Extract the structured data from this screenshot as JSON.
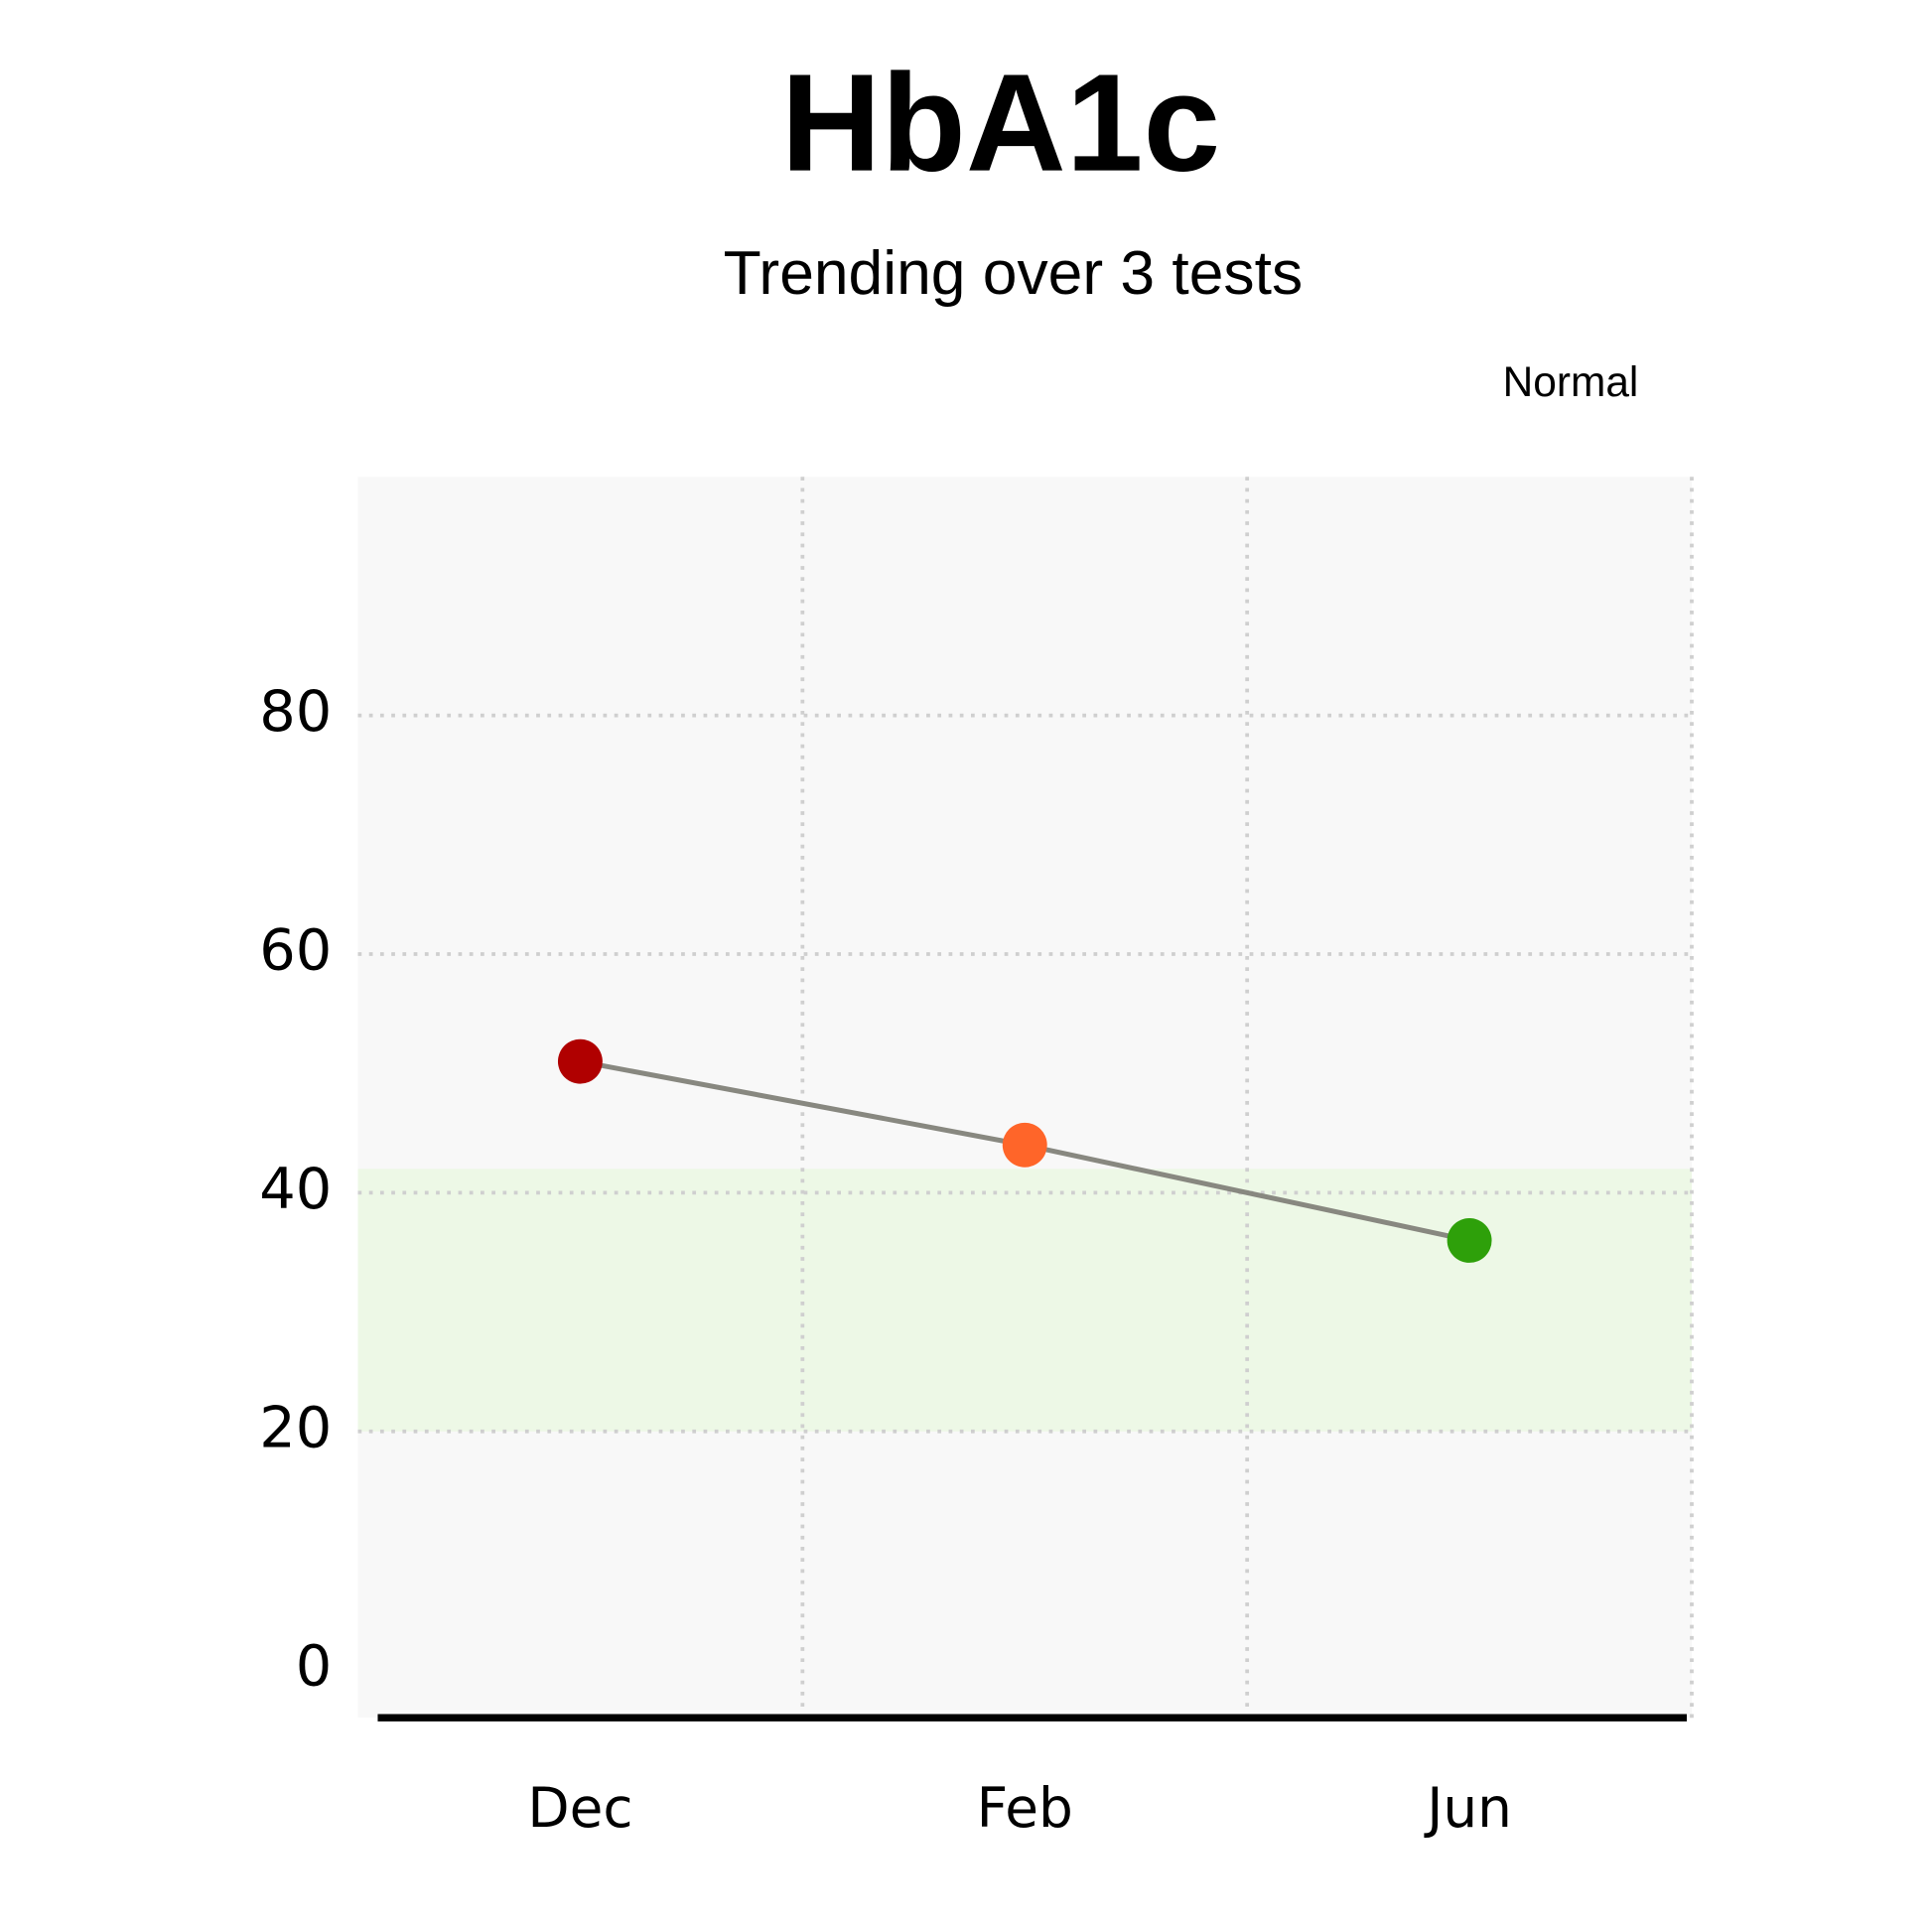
{
  "chart_data": {
    "type": "line",
    "title": "HbA1c",
    "subtitle": "Trending over 3 tests",
    "categories": [
      "Dec",
      "Feb",
      "Jun"
    ],
    "series": [
      {
        "values": [
          51,
          44,
          36
        ],
        "color": "#888880",
        "point_colors": [
          "#b00000",
          "#ff6529",
          "#2ea00a"
        ]
      }
    ],
    "ylim": [
      -4,
      100
    ],
    "yticks": [
      0,
      20,
      40,
      60,
      80
    ],
    "grid": true,
    "normal_range": {
      "label": "Normal",
      "range": [
        20,
        42
      ],
      "color": "#edf8e6"
    }
  }
}
